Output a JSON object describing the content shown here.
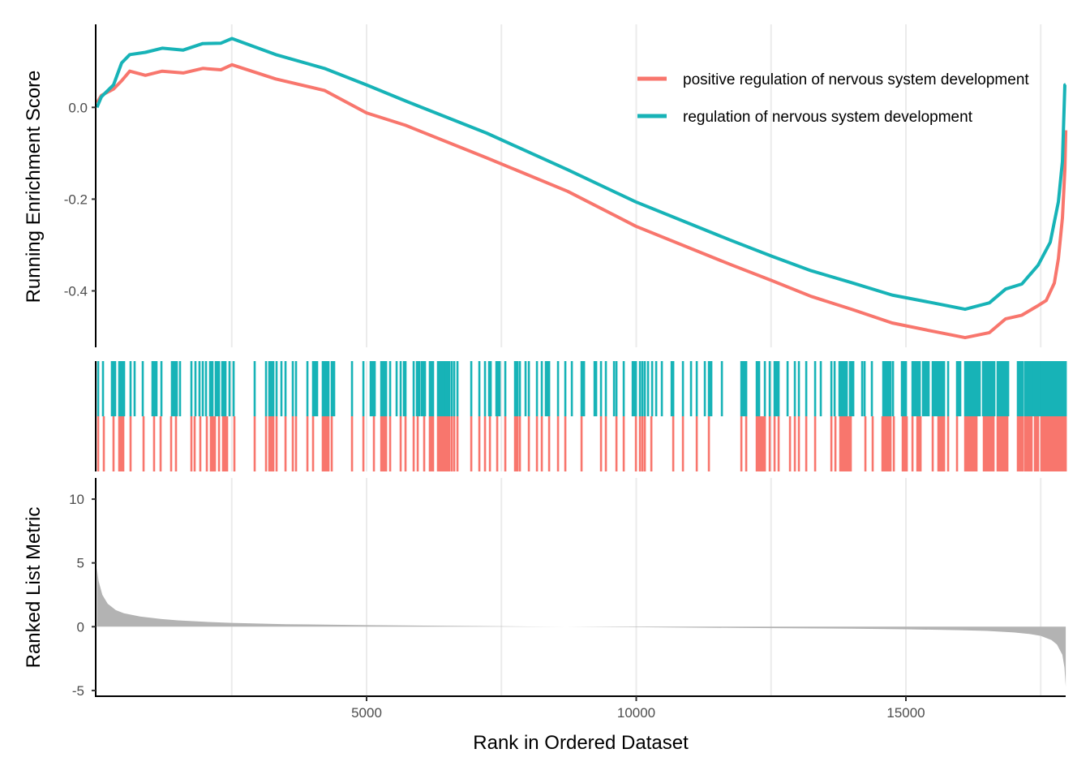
{
  "chart_data": {
    "type": "line",
    "title": "",
    "xlabel": "Rank in Ordered Dataset",
    "xlim": [
      0,
      18000
    ],
    "x_ticks": [
      5000,
      10000,
      15000
    ],
    "x_tick_labels": [
      "5000",
      "10000",
      "15000"
    ],
    "x_minor_gridlines": [
      2500,
      7500,
      12500,
      17500
    ],
    "grid": "vertical",
    "legend_position": "top-right",
    "panels": {
      "enrichment": {
        "ylabel": "Running Enrichment Score",
        "ylim": [
          -0.523,
          0.181
        ],
        "y_ticks": [
          0.0,
          -0.2,
          -0.4
        ],
        "y_tick_labels": [
          "0.0",
          "-0.2",
          "-0.4"
        ]
      },
      "hits": {
        "ylabel": ""
      },
      "ranked_metric": {
        "type": "area",
        "ylabel": "Ranked List Metric",
        "ylim": [
          -5.45,
          11.66
        ],
        "y_ticks": [
          10,
          5,
          0,
          -5
        ],
        "y_tick_labels": [
          "10",
          "5",
          "0",
          "-5"
        ],
        "fill_color": "#b3b3b3",
        "x": [
          0,
          30,
          100,
          200,
          350,
          500,
          800,
          1200,
          1500,
          2000,
          2500,
          3500,
          5000,
          6500,
          8000,
          8700,
          10000,
          12000,
          14000,
          15000,
          16000,
          16500,
          17000,
          17300,
          17500,
          17700,
          17800,
          17900,
          17940,
          17964
        ],
        "values": [
          4.6,
          3.6,
          2.5,
          1.8,
          1.3,
          1.05,
          0.8,
          0.6,
          0.5,
          0.38,
          0.3,
          0.2,
          0.12,
          0.07,
          0.02,
          0.0,
          -0.04,
          -0.1,
          -0.15,
          -0.2,
          -0.27,
          -0.33,
          -0.45,
          -0.58,
          -0.72,
          -1.05,
          -1.4,
          -2.2,
          -3.2,
          -4.7
        ]
      }
    },
    "series": [
      {
        "name": "positive regulation of nervous system development",
        "color": "#F8766D",
        "x": [
          0,
          83,
          309,
          459,
          609,
          900,
          1211,
          1600,
          1962,
          2300,
          2504,
          3316,
          4218,
          4999,
          5722,
          7226,
          8729,
          9992,
          11737,
          12504,
          13241,
          13993,
          14744,
          15496,
          16098,
          16549,
          16850,
          17150,
          17451,
          17602,
          17752,
          17827,
          17902,
          17947,
          17964
        ],
        "values": [
          0.01,
          0.026,
          0.04,
          0.058,
          0.079,
          0.07,
          0.079,
          0.075,
          0.085,
          0.082,
          0.093,
          0.062,
          0.037,
          -0.012,
          -0.039,
          -0.11,
          -0.183,
          -0.259,
          -0.342,
          -0.377,
          -0.412,
          -0.44,
          -0.47,
          -0.488,
          -0.502,
          -0.491,
          -0.461,
          -0.453,
          -0.432,
          -0.421,
          -0.383,
          -0.33,
          -0.241,
          -0.136,
          -0.05
        ],
        "hits": [
          23,
          128,
          308,
          [
            414,
            489
          ],
          624,
          865,
          1060,
          1181,
          1376,
          1466,
          1752,
          1812,
          1917,
          2038,
          [
            2113,
            2188
          ],
          2264,
          [
            2339,
            2414
          ],
          2549,
          2925,
          3136,
          [
            3196,
            3271
          ],
          3331,
          3497,
          3632,
          3692,
          3903,
          4008,
          [
            4188,
            4264
          ],
          4294,
          4354,
          4730,
          4941,
          5136,
          [
            5272,
            5362
          ],
          5437,
          5632,
          5722,
          5873,
          5948,
          6068,
          [
            6173,
            6233
          ],
          [
            6324,
            6444
          ],
          [
            6474,
            6534
          ],
          6579,
          6625,
          6685,
          6941,
          7091,
          7196,
          7287,
          7422,
          7572,
          [
            7753,
            7798
          ],
          7843,
          8009,
          8159,
          8249,
          8385,
          8550,
          8685,
          8986,
          9347,
          9437,
          9633,
          9768,
          9994,
          10069,
          10114,
          10159,
          10280,
          10686,
          10866,
          11122,
          11347,
          11949,
          12039,
          [
            12234,
            12385
          ],
          12475,
          12565,
          12640,
          12851,
          12941,
          13016,
          13152,
          13317,
          13618,
          13693,
          [
            13783,
            13978
          ],
          14249,
          14384,
          [
            14565,
            14715
          ],
          14776,
          [
            14941,
            15016
          ],
          15122,
          [
            15212,
            15272
          ],
          15497,
          [
            15602,
            15708
          ],
          15783,
          15948,
          [
            16099,
            16309
          ],
          [
            16445,
            16625
          ],
          [
            16700,
            16881
          ],
          [
            17076,
            17166
          ],
          [
            17211,
            17331
          ],
          [
            17392,
            17452
          ],
          [
            17512,
            17964
          ]
        ]
      },
      {
        "name": "regulation of nervous system development",
        "color": "#17B3B7",
        "x": [
          0,
          83,
          309,
          459,
          609,
          900,
          1211,
          1600,
          1962,
          2300,
          2504,
          3316,
          4218,
          4999,
          5722,
          7226,
          8729,
          9992,
          11737,
          12504,
          13241,
          13993,
          14744,
          15496,
          16098,
          16549,
          16850,
          17150,
          17451,
          17677,
          17827,
          17902,
          17947,
          17964
        ],
        "values": [
          0.0,
          0.023,
          0.049,
          0.097,
          0.115,
          0.12,
          0.129,
          0.125,
          0.139,
          0.14,
          0.15,
          0.115,
          0.085,
          0.049,
          0.014,
          -0.056,
          -0.136,
          -0.206,
          -0.289,
          -0.324,
          -0.356,
          -0.382,
          -0.409,
          -0.426,
          -0.44,
          -0.426,
          -0.396,
          -0.385,
          -0.344,
          -0.294,
          -0.206,
          -0.118,
          0.049,
          0.05
        ],
        "hits": [
          23,
          113,
          [
            278,
            338
          ],
          [
            414,
            504
          ],
          624,
          699,
          850,
          [
            1030,
            1105
          ],
          1196,
          [
            1391,
            1481
          ],
          1541,
          1752,
          1827,
          1902,
          1963,
          2023,
          [
            2098,
            2143
          ],
          [
            2203,
            2264
          ],
          [
            2324,
            2384
          ],
          2459,
          2535,
          2925,
          3136,
          [
            3196,
            3271
          ],
          3331,
          3421,
          3497,
          3632,
          3692,
          3903,
          [
            4008,
            4083
          ],
          [
            4188,
            4264
          ],
          4294,
          [
            4354,
            4399
          ],
          4730,
          4941,
          [
            5076,
            5151
          ],
          [
            5272,
            5362
          ],
          5437,
          5557,
          5632,
          5692,
          5722,
          5873,
          [
            5933,
            5978
          ],
          [
            6023,
            6083
          ],
          [
            6173,
            6233
          ],
          [
            6324,
            6444
          ],
          [
            6474,
            6534
          ],
          6579,
          6625,
          6685,
          6941,
          7091,
          7196,
          [
            7272,
            7302
          ],
          [
            7407,
            7467
          ],
          7572,
          [
            7753,
            7798
          ],
          7843,
          7948,
          8009,
          8159,
          8249,
          [
            8324,
            8385
          ],
          8550,
          8685,
          8806,
          [
            8986,
            9032
          ],
          [
            9227,
            9257
          ],
          9347,
          9437,
          9588,
          9633,
          9768,
          [
            9934,
            9994
          ],
          10069,
          10114,
          10159,
          10219,
          10295,
          10370,
          10475,
          [
            10656,
            10686
          ],
          10866,
          11016,
          11122,
          11272,
          [
            11347,
            11392
          ],
          11588,
          [
            11949,
            12039
          ],
          [
            12234,
            12279
          ],
          12385,
          12475,
          [
            12565,
            12640
          ],
          12806,
          12941,
          13016,
          13152,
          13317,
          13422,
          13618,
          13678,
          [
            13768,
            13903
          ],
          [
            13963,
            14024
          ],
          14189,
          14234,
          14369,
          [
            14580,
            14715
          ],
          14761,
          [
            14926,
            15001
          ],
          [
            15122,
            15167
          ],
          [
            15197,
            15257
          ],
          [
            15317,
            15422
          ],
          [
            15497,
            15708
          ],
          15783,
          [
            15948,
            16008
          ],
          [
            16099,
            16369
          ],
          [
            16430,
            16640
          ],
          [
            16700,
            16896
          ],
          [
            17076,
            17166
          ],
          [
            17211,
            17346
          ],
          [
            17377,
            17482
          ],
          [
            17512,
            17964
          ]
        ]
      }
    ]
  }
}
